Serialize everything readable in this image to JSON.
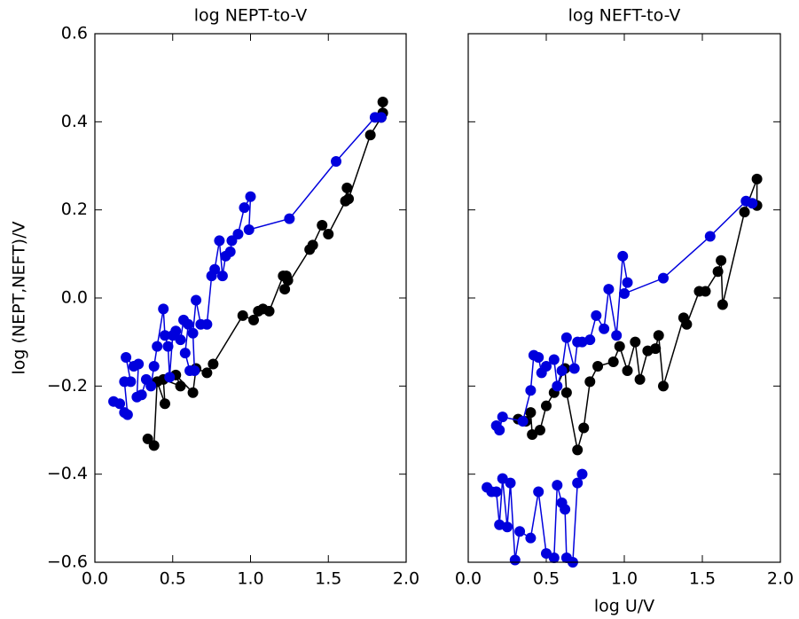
{
  "chart_data": [
    {
      "type": "line",
      "title": "log NEPT-to-V",
      "ylabel": "log (NEPT,NEFT)/V",
      "xlim": [
        0,
        2
      ],
      "ylim": [
        -0.6,
        0.6
      ],
      "xticks": [
        {
          "value": 0,
          "label": "0.0"
        },
        0.5,
        {
          "value": 1,
          "label": "1.0"
        },
        1.5,
        {
          "value": 2,
          "label": "2.0"
        }
      ],
      "yticks": [
        {
          "value": -0.6,
          "label": "−0.6"
        },
        {
          "value": -0.4,
          "label": "−0.4"
        },
        {
          "value": -0.2,
          "label": "−0.2"
        },
        {
          "value": 0,
          "label": "0.0"
        },
        0.2,
        0.4,
        0.6
      ],
      "show_ytick_labels": true,
      "series": [
        {
          "color": "#000000",
          "x": [
            0.34,
            0.38,
            0.4,
            0.45,
            0.44,
            0.55,
            0.52,
            0.63,
            0.65,
            0.72,
            0.76,
            0.95,
            1.02,
            1.05,
            1.08,
            1.12,
            1.21,
            1.23,
            1.24,
            1.22,
            1.38,
            1.4,
            1.46,
            1.5,
            1.61,
            1.62,
            1.63,
            1.77,
            1.84,
            1.85,
            1.85
          ],
          "values": [
            -0.32,
            -0.335,
            -0.19,
            -0.24,
            -0.185,
            -0.2,
            -0.175,
            -0.215,
            -0.16,
            -0.17,
            -0.15,
            -0.04,
            -0.05,
            -0.03,
            -0.025,
            -0.03,
            0.05,
            0.05,
            0.04,
            0.02,
            0.11,
            0.12,
            0.165,
            0.145,
            0.22,
            0.25,
            0.225,
            0.37,
            0.41,
            0.445,
            0.42
          ]
        },
        {
          "color": "#0000dd",
          "x": [
            0.12,
            0.16,
            0.19,
            0.21,
            0.19,
            0.23,
            0.2,
            0.25,
            0.28,
            0.27,
            0.3,
            0.33,
            0.36,
            0.38,
            0.4,
            0.44,
            0.45,
            0.47,
            0.48,
            0.5,
            0.52,
            0.55,
            0.57,
            0.6,
            0.58,
            0.61,
            0.64,
            0.63,
            0.65,
            0.68,
            0.72,
            0.75,
            0.77,
            0.8,
            0.82,
            0.84,
            0.87,
            0.88,
            0.92,
            0.96,
            1.0,
            0.99,
            1.25,
            1.55,
            1.8,
            1.84
          ],
          "values": [
            -0.235,
            -0.24,
            -0.26,
            -0.265,
            -0.19,
            -0.19,
            -0.135,
            -0.155,
            -0.15,
            -0.225,
            -0.22,
            -0.185,
            -0.2,
            -0.155,
            -0.11,
            -0.025,
            -0.085,
            -0.11,
            -0.18,
            -0.085,
            -0.075,
            -0.095,
            -0.05,
            -0.06,
            -0.125,
            -0.165,
            -0.165,
            -0.08,
            -0.005,
            -0.06,
            -0.06,
            0.05,
            0.065,
            0.13,
            0.05,
            0.095,
            0.105,
            0.13,
            0.145,
            0.205,
            0.23,
            0.155,
            0.18,
            0.31,
            0.41,
            0.41
          ]
        }
      ]
    },
    {
      "type": "line",
      "title": "log NEFT-to-V",
      "xlabel": "log U/V",
      "xlim": [
        0,
        2
      ],
      "ylim": [
        -0.6,
        0.6
      ],
      "xticks": [
        {
          "value": 0,
          "label": "0.0"
        },
        0.5,
        {
          "value": 1,
          "label": "1.0"
        },
        1.5,
        {
          "value": 2,
          "label": "2.0"
        }
      ],
      "yticks": [
        -0.6,
        -0.4,
        -0.2,
        0,
        0.2,
        0.4,
        0.6
      ],
      "show_ytick_labels": false,
      "series": [
        {
          "color": "#000000",
          "x": [
            0.32,
            0.37,
            0.4,
            0.41,
            0.46,
            0.5,
            0.55,
            0.62,
            0.63,
            0.7,
            0.74,
            0.78,
            0.83,
            0.93,
            0.97,
            1.02,
            1.07,
            1.1,
            1.15,
            1.2,
            1.22,
            1.25,
            1.38,
            1.4,
            1.48,
            1.52,
            1.6,
            1.62,
            1.63,
            1.77,
            1.85,
            1.85
          ],
          "values": [
            -0.275,
            -0.28,
            -0.26,
            -0.31,
            -0.3,
            -0.245,
            -0.215,
            -0.16,
            -0.215,
            -0.345,
            -0.295,
            -0.19,
            -0.155,
            -0.145,
            -0.11,
            -0.165,
            -0.1,
            -0.185,
            -0.12,
            -0.115,
            -0.085,
            -0.2,
            -0.045,
            -0.06,
            0.015,
            0.015,
            0.06,
            0.085,
            -0.015,
            0.195,
            0.27,
            0.21
          ]
        },
        {
          "color": "#0000dd",
          "x": [
            0.18,
            0.2,
            0.22,
            0.35,
            0.4,
            0.42,
            0.45,
            0.47,
            0.5,
            0.55,
            0.57,
            0.6,
            0.63,
            0.68,
            0.7,
            0.73,
            0.78,
            0.82,
            0.87,
            0.9,
            0.95,
            0.99,
            1.02,
            1.0,
            1.25,
            1.55,
            1.78,
            1.82
          ],
          "values": [
            -0.29,
            -0.3,
            -0.27,
            -0.28,
            -0.21,
            -0.13,
            -0.135,
            -0.17,
            -0.155,
            -0.14,
            -0.2,
            -0.165,
            -0.09,
            -0.16,
            -0.1,
            -0.1,
            -0.095,
            -0.04,
            -0.07,
            0.02,
            -0.085,
            0.095,
            0.035,
            0.01,
            0.045,
            0.14,
            0.22,
            0.215
          ]
        },
        {
          "color": "#0000dd",
          "x": [
            0.12,
            0.15,
            0.18,
            0.2,
            0.22,
            0.25,
            0.27,
            0.3,
            0.33,
            0.4,
            0.45,
            0.5,
            0.55,
            0.57,
            0.6,
            0.62,
            0.63,
            0.67,
            0.7,
            0.73
          ],
          "values": [
            -0.43,
            -0.44,
            -0.44,
            -0.515,
            -0.41,
            -0.52,
            -0.42,
            -0.595,
            -0.53,
            -0.545,
            -0.44,
            -0.58,
            -0.59,
            -0.425,
            -0.465,
            -0.48,
            -0.59,
            -0.6,
            -0.42,
            -0.4
          ]
        }
      ]
    }
  ]
}
